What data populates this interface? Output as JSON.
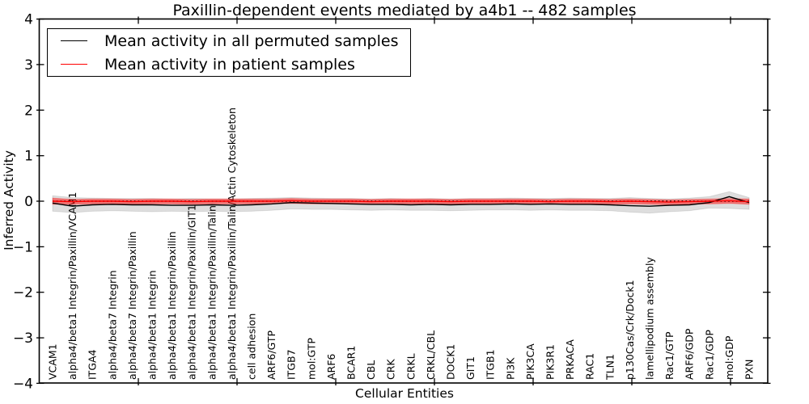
{
  "chart_data": {
    "type": "line",
    "title": "Paxillin-dependent events mediated by a4b1 -- 482 samples",
    "xlabel": "Cellular Entities",
    "ylabel": "Inferred Activity",
    "ylim": [
      -4,
      4
    ],
    "yticks": [
      -4,
      -3,
      -2,
      -1,
      0,
      1,
      2,
      3,
      4
    ],
    "grid": false,
    "legend_position": "upper left",
    "zero_line": {
      "y": 0,
      "style": "dotted",
      "color": "#000000"
    },
    "categories": [
      "VCAM1",
      "alpha4/beta1 Integrin/Paxillin/VCAM1",
      "ITGA4",
      "alpha4/beta7 Integrin",
      "alpha4/beta7 Integrin/Paxillin",
      "alpha4/beta1 Integrin",
      "alpha4/beta1 Integrin/Paxillin",
      "alpha4/beta1 Integrin/Paxillin/GIT1",
      "alpha4/beta1 Integrin/Paxillin/Talin",
      "alpha4/beta1 Integrin/Paxillin/Talin/Actin Cytoskeleton",
      "cell adhesion",
      "ARF6/GTP",
      "ITGB7",
      "mol:GTP",
      "ARF6",
      "BCAR1",
      "CBL",
      "CRK",
      "CRKL",
      "CRKL/CBL",
      "DOCK1",
      "GIT1",
      "ITGB1",
      "PI3K",
      "PIK3CA",
      "PIK3R1",
      "PRKACA",
      "RAC1",
      "TLN1",
      "p130Cas/Crk/Dock1",
      "lamellipodium assembly",
      "Rac1/GTP",
      "ARF6/GDP",
      "Rac1/GDP",
      "mol:GDP",
      "PXN"
    ],
    "series": [
      {
        "name": "Mean activity in all permuted samples",
        "line_color": "#000000",
        "band_color": "rgba(0,0,0,0.13)",
        "values": [
          -0.04,
          -0.11,
          -0.08,
          -0.07,
          -0.08,
          -0.08,
          -0.09,
          -0.09,
          -0.08,
          -0.09,
          -0.08,
          -0.06,
          -0.03,
          -0.04,
          -0.05,
          -0.06,
          -0.07,
          -0.07,
          -0.08,
          -0.07,
          -0.08,
          -0.07,
          -0.07,
          -0.06,
          -0.07,
          -0.06,
          -0.07,
          -0.07,
          -0.08,
          -0.1,
          -0.11,
          -0.09,
          -0.08,
          -0.03,
          0.1,
          -0.03
        ],
        "band_upper": [
          0.12,
          0.08,
          0.07,
          0.06,
          0.06,
          0.06,
          0.05,
          0.06,
          0.05,
          0.05,
          0.06,
          0.07,
          0.08,
          0.07,
          0.06,
          0.06,
          0.05,
          0.06,
          0.05,
          0.06,
          0.05,
          0.06,
          0.06,
          0.07,
          0.06,
          0.06,
          0.07,
          0.06,
          0.06,
          0.08,
          0.06,
          0.05,
          0.07,
          0.1,
          0.21,
          0.08
        ],
        "band_lower": [
          -0.22,
          -0.25,
          -0.22,
          -0.21,
          -0.22,
          -0.23,
          -0.22,
          -0.23,
          -0.22,
          -0.23,
          -0.22,
          -0.2,
          -0.17,
          -0.18,
          -0.18,
          -0.19,
          -0.2,
          -0.19,
          -0.2,
          -0.2,
          -0.21,
          -0.2,
          -0.19,
          -0.19,
          -0.2,
          -0.19,
          -0.2,
          -0.2,
          -0.21,
          -0.24,
          -0.26,
          -0.23,
          -0.21,
          -0.15,
          -0.16,
          -0.18
        ]
      },
      {
        "name": "Mean activity in patient samples",
        "line_color": "#ff0000",
        "band_color": "rgba(255,0,0,0.48)",
        "values": [
          0.0,
          -0.01,
          0.0,
          0.0,
          -0.01,
          0.0,
          0.0,
          -0.01,
          0.0,
          0.0,
          0.0,
          0.0,
          0.01,
          0.0,
          0.0,
          0.0,
          -0.01,
          0.0,
          0.0,
          0.0,
          -0.01,
          0.0,
          0.0,
          0.0,
          0.0,
          -0.01,
          0.0,
          0.0,
          -0.01,
          0.0,
          -0.01,
          -0.02,
          -0.01,
          0.0,
          0.01,
          -0.01
        ],
        "band_upper": [
          0.07,
          0.04,
          0.05,
          0.05,
          0.04,
          0.05,
          0.05,
          0.04,
          0.05,
          0.05,
          0.05,
          0.05,
          0.06,
          0.05,
          0.05,
          0.05,
          0.04,
          0.05,
          0.05,
          0.05,
          0.04,
          0.05,
          0.05,
          0.05,
          0.05,
          0.04,
          0.05,
          0.05,
          0.04,
          0.05,
          0.04,
          0.03,
          0.04,
          0.05,
          0.06,
          0.05
        ],
        "band_lower": [
          -0.07,
          -0.07,
          -0.06,
          -0.06,
          -0.07,
          -0.06,
          -0.06,
          -0.07,
          -0.06,
          -0.06,
          -0.06,
          -0.06,
          -0.05,
          -0.06,
          -0.06,
          -0.06,
          -0.07,
          -0.06,
          -0.06,
          -0.06,
          -0.07,
          -0.06,
          -0.06,
          -0.06,
          -0.06,
          -0.07,
          -0.06,
          -0.06,
          -0.07,
          -0.06,
          -0.07,
          -0.08,
          -0.07,
          -0.06,
          -0.05,
          -0.07
        ]
      }
    ]
  },
  "legend": {
    "items": [
      {
        "label": "Mean activity in all permuted samples",
        "color": "#000000"
      },
      {
        "label": "Mean activity in patient samples",
        "color": "#ff0000"
      }
    ]
  }
}
